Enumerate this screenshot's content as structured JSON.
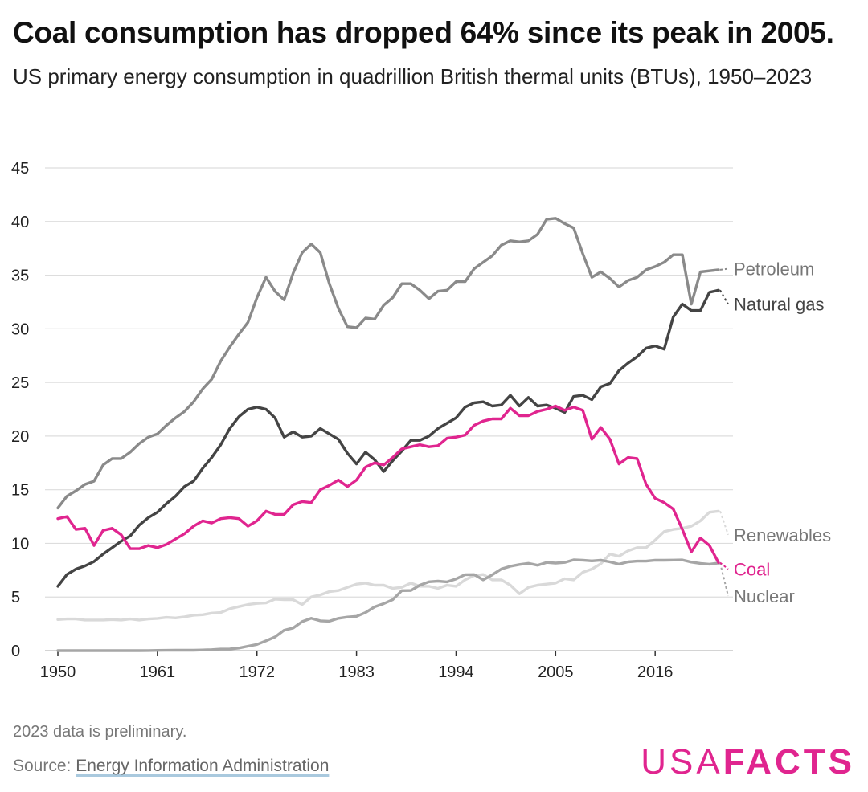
{
  "title": "Coal consumption has dropped 64% since its peak in 2005.",
  "subtitle": "US primary energy consumption in quadrillion British thermal units (BTUs), 1950–2023",
  "note": "2023 data is preliminary.",
  "source": {
    "prefix": "Source: ",
    "link_text": "Energy Information Administration"
  },
  "logo": {
    "part1": "USA",
    "part2": "FACTS"
  },
  "colors": {
    "petroleum": "#8a8a8a",
    "natural_gas": "#444444",
    "coal": "#e0258f",
    "renewables": "#d9d9d9",
    "nuclear": "#a6a6a6",
    "grid": "#dddddd"
  },
  "chart_data": {
    "type": "line",
    "ylim": [
      0,
      45
    ],
    "yticks": [
      "0",
      "5",
      "10",
      "15",
      "20",
      "25",
      "30",
      "35",
      "40",
      "45"
    ],
    "xlim": [
      1950,
      2023
    ],
    "xticks": [
      "1950",
      "1961",
      "1972",
      "1983",
      "1994",
      "2005",
      "2016"
    ],
    "grid": true,
    "legend": "end-of-line labels",
    "series": [
      {
        "name": "Petroleum",
        "key": "petroleum",
        "label_y": 35.6,
        "values": [
          13.3,
          14.4,
          14.9,
          15.5,
          15.8,
          17.3,
          17.9,
          17.9,
          18.5,
          19.3,
          19.9,
          20.2,
          21.0,
          21.7,
          22.3,
          23.2,
          24.4,
          25.3,
          27.0,
          28.3,
          29.5,
          30.6,
          32.9,
          34.8,
          33.5,
          32.7,
          35.2,
          37.1,
          37.9,
          37.1,
          34.2,
          31.9,
          30.2,
          30.1,
          31.0,
          30.9,
          32.2,
          32.9,
          34.2,
          34.2,
          33.6,
          32.8,
          33.5,
          33.6,
          34.4,
          34.4,
          35.6,
          36.2,
          36.8,
          37.8,
          38.2,
          38.1,
          38.2,
          38.8,
          40.2,
          40.3,
          39.8,
          39.4,
          37.0,
          34.8,
          35.3,
          34.7,
          33.9,
          34.5,
          34.8,
          35.5,
          35.8,
          36.2,
          36.9,
          36.9,
          32.3,
          35.3,
          35.4,
          35.5
        ]
      },
      {
        "name": "Natural gas",
        "key": "natural_gas",
        "label_y": 32.3,
        "values": [
          6.0,
          7.1,
          7.6,
          7.9,
          8.3,
          9.0,
          9.6,
          10.2,
          10.7,
          11.7,
          12.4,
          12.9,
          13.7,
          14.4,
          15.3,
          15.8,
          17.0,
          18.0,
          19.2,
          20.7,
          21.8,
          22.5,
          22.7,
          22.5,
          21.7,
          19.9,
          20.4,
          19.9,
          20.0,
          20.7,
          20.2,
          19.7,
          18.4,
          17.4,
          18.5,
          17.8,
          16.7,
          17.7,
          18.6,
          19.6,
          19.6,
          20.0,
          20.7,
          21.2,
          21.7,
          22.7,
          23.1,
          23.2,
          22.8,
          22.9,
          23.8,
          22.8,
          23.6,
          22.8,
          22.9,
          22.6,
          22.2,
          23.7,
          23.8,
          23.4,
          24.6,
          24.9,
          26.1,
          26.8,
          27.4,
          28.2,
          28.4,
          28.1,
          31.1,
          32.3,
          31.7,
          31.7,
          33.4,
          33.6
        ]
      },
      {
        "name": "Coal",
        "key": "coal",
        "label_y": 7.6,
        "values": [
          12.3,
          12.5,
          11.3,
          11.4,
          9.8,
          11.2,
          11.4,
          10.8,
          9.5,
          9.5,
          9.8,
          9.6,
          9.9,
          10.4,
          10.9,
          11.6,
          12.1,
          11.9,
          12.3,
          12.4,
          12.3,
          11.6,
          12.1,
          13.0,
          12.7,
          12.7,
          13.6,
          13.9,
          13.8,
          15.0,
          15.4,
          15.9,
          15.3,
          15.9,
          17.1,
          17.5,
          17.3,
          18.0,
          18.8,
          19.0,
          19.2,
          19.0,
          19.1,
          19.8,
          19.9,
          20.1,
          21.0,
          21.4,
          21.6,
          21.6,
          22.6,
          21.9,
          21.9,
          22.3,
          22.5,
          22.8,
          22.4,
          22.7,
          22.4,
          19.7,
          20.8,
          19.7,
          17.4,
          18.0,
          17.9,
          15.5,
          14.2,
          13.8,
          13.2,
          11.3,
          9.2,
          10.5,
          9.8,
          8.2
        ]
      },
      {
        "name": "Renewables",
        "key": "renewables",
        "label_y": 10.8,
        "values": [
          2.9,
          2.95,
          2.95,
          2.85,
          2.85,
          2.85,
          2.9,
          2.85,
          2.95,
          2.85,
          2.95,
          3.0,
          3.1,
          3.05,
          3.15,
          3.3,
          3.35,
          3.5,
          3.55,
          3.9,
          4.1,
          4.3,
          4.4,
          4.45,
          4.8,
          4.75,
          4.75,
          4.3,
          5.0,
          5.2,
          5.5,
          5.6,
          5.9,
          6.2,
          6.3,
          6.1,
          6.1,
          5.8,
          5.9,
          6.3,
          6.0,
          6.0,
          5.8,
          6.1,
          6.0,
          6.6,
          7.0,
          7.1,
          6.6,
          6.6,
          6.1,
          5.3,
          5.9,
          6.1,
          6.2,
          6.3,
          6.7,
          6.6,
          7.3,
          7.6,
          8.1,
          9.0,
          8.8,
          9.3,
          9.6,
          9.6,
          10.3,
          11.1,
          11.3,
          11.4,
          11.6,
          12.1,
          12.9,
          13.0
        ]
      },
      {
        "name": "Nuclear",
        "key": "nuclear",
        "label_y": 5.1,
        "values": [
          0,
          0,
          0,
          0,
          0,
          0,
          0,
          0,
          0,
          0,
          0.01,
          0.02,
          0.03,
          0.04,
          0.04,
          0.04,
          0.06,
          0.09,
          0.14,
          0.15,
          0.24,
          0.41,
          0.58,
          0.91,
          1.27,
          1.9,
          2.11,
          2.7,
          3.02,
          2.78,
          2.74,
          3.01,
          3.13,
          3.2,
          3.55,
          4.08,
          4.38,
          4.75,
          5.59,
          5.6,
          6.1,
          6.42,
          6.48,
          6.41,
          6.69,
          7.08,
          7.09,
          6.6,
          7.07,
          7.61,
          7.86,
          8.03,
          8.14,
          7.96,
          8.22,
          8.16,
          8.22,
          8.46,
          8.43,
          8.36,
          8.43,
          8.27,
          8.06,
          8.27,
          8.34,
          8.34,
          8.43,
          8.42,
          8.44,
          8.45,
          8.25,
          8.13,
          8.06,
          8.17
        ]
      }
    ]
  }
}
